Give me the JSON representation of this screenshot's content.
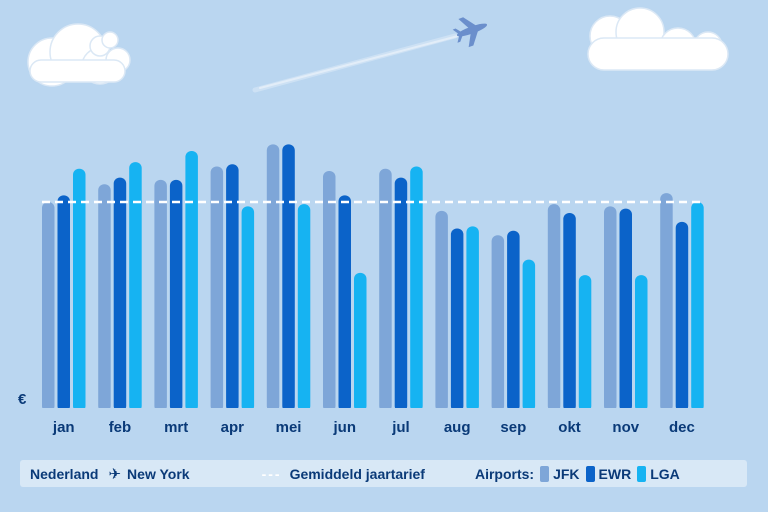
{
  "chart_data": {
    "type": "bar",
    "title": "",
    "xlabel": "",
    "ylabel": "€",
    "categories": [
      "jan",
      "feb",
      "mrt",
      "apr",
      "mei",
      "jun",
      "jul",
      "aug",
      "sep",
      "okt",
      "nov",
      "dec"
    ],
    "series": [
      {
        "name": "JFK",
        "color": "#7ea6d8",
        "values": [
          93,
          101,
          103,
          109,
          119,
          107,
          108,
          89,
          78,
          92,
          91,
          97
        ]
      },
      {
        "name": "EWR",
        "color": "#0b63c9",
        "values": [
          96,
          104,
          103,
          110,
          119,
          96,
          104,
          81,
          80,
          88,
          90,
          84
        ]
      },
      {
        "name": "LGA",
        "color": "#16b3f2",
        "values": [
          108,
          111,
          116,
          91,
          92,
          61,
          109,
          82,
          67,
          60,
          60,
          93
        ]
      }
    ],
    "average": 93,
    "ylim": [
      0,
      130
    ],
    "grid": false,
    "legend_position": "bottom"
  },
  "legend": {
    "origin": "Nederland",
    "destination": "New York",
    "average_label": "Gemiddeld jaartarief",
    "airports_label": "Airports:"
  },
  "colors": {
    "background": "#bad6f0",
    "text": "#0a3a78",
    "average_line": "#ffffff",
    "legend_background": "#d8e8f6"
  },
  "icons": [
    "cloud-icon",
    "airplane-icon"
  ]
}
